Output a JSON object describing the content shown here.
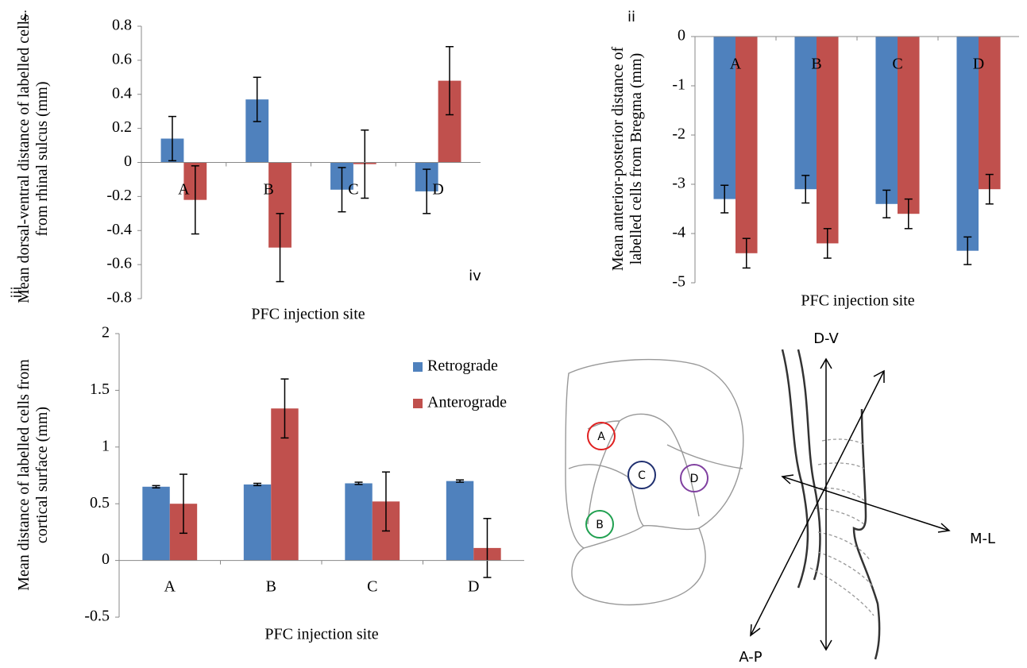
{
  "chart_data": [
    {
      "type": "bar",
      "y_label": "Mean dorsal-ventral distance of labelled cells from rhinal sulcus (mm)",
      "x_label": "PFC injection site",
      "categories": [
        "A",
        "B",
        "C",
        "D"
      ],
      "series": [
        {
          "name": "Retrograde",
          "color": "#4f81bd",
          "values": [
            0.14,
            0.37,
            -0.16,
            -0.17
          ],
          "errors": [
            0.13,
            0.13,
            0.13,
            0.13
          ]
        },
        {
          "name": "Anterograde",
          "color": "#c0504d",
          "values": [
            -0.22,
            -0.5,
            -0.01,
            0.48
          ],
          "errors": [
            0.2,
            0.2,
            0.2,
            0.2
          ]
        }
      ],
      "ylim": [
        -0.8,
        0.8
      ],
      "yticks": [
        -0.8,
        -0.6,
        -0.4,
        -0.2,
        0,
        0.2,
        0.4,
        0.6,
        0.8
      ],
      "legend": false
    },
    {
      "type": "bar",
      "y_label": "Mean anterior-posterior distance of labelled cells from Bregma (mm)",
      "x_label": "PFC injection site",
      "categories": [
        "A",
        "B",
        "C",
        "D"
      ],
      "series": [
        {
          "name": "Retrograde",
          "color": "#4f81bd",
          "values": [
            -3.3,
            -3.1,
            -3.4,
            -4.35
          ],
          "errors": [
            0.28,
            0.28,
            0.28,
            0.28
          ]
        },
        {
          "name": "Anterograde",
          "color": "#c0504d",
          "values": [
            -4.4,
            -4.2,
            -3.6,
            -3.1
          ],
          "errors": [
            0.3,
            0.3,
            0.3,
            0.3
          ]
        }
      ],
      "ylim": [
        -5,
        0
      ],
      "yticks": [
        -5,
        -4,
        -3,
        -2,
        -1,
        0
      ],
      "legend": false
    },
    {
      "type": "bar",
      "y_label": "Mean distance of labelled cells from cortical surface (mm)",
      "x_label": "PFC injection site",
      "categories": [
        "A",
        "B",
        "C",
        "D"
      ],
      "series": [
        {
          "name": "Retrograde",
          "color": "#4f81bd",
          "values": [
            0.65,
            0.67,
            0.68,
            0.7
          ],
          "errors": [
            0.01,
            0.01,
            0.01,
            0.01
          ]
        },
        {
          "name": "Anterograde",
          "color": "#c0504d",
          "values": [
            0.5,
            1.34,
            0.52,
            0.11
          ],
          "errors": [
            0.26,
            0.26,
            0.26,
            0.26
          ]
        }
      ],
      "ylim": [
        -0.5,
        2
      ],
      "yticks": [
        -0.5,
        0,
        0.5,
        1,
        1.5,
        2
      ],
      "legend": "upper right"
    }
  ],
  "panel_labels": [
    "i",
    "ii",
    "iii",
    "iv"
  ],
  "diagram": {
    "sites": [
      "A",
      "C",
      "D",
      "B"
    ],
    "axes": [
      "D-V",
      "M-L",
      "A-P"
    ]
  }
}
